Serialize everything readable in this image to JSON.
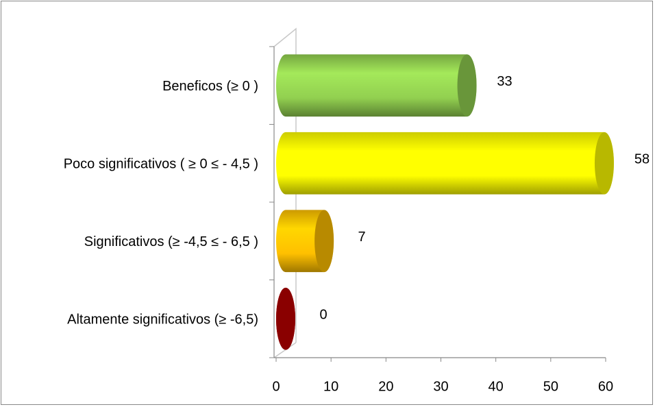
{
  "chart_data": {
    "type": "bar",
    "orientation": "horizontal",
    "categories": [
      "Beneficos  (≥ 0 )",
      "Poco significativos  ( ≥ 0  ≤ - 4,5 )",
      "Significativos (≥ -4,5  ≤ - 6,5 )",
      "Altamente significativos (≥  -6,5)"
    ],
    "values": [
      33,
      58,
      7,
      0
    ],
    "colors": [
      "#92d050",
      "#ffff00",
      "#ffc000",
      "#c00000"
    ],
    "xlim": [
      0,
      60
    ],
    "xticks": [
      0,
      10,
      20,
      30,
      40,
      50,
      60
    ]
  }
}
